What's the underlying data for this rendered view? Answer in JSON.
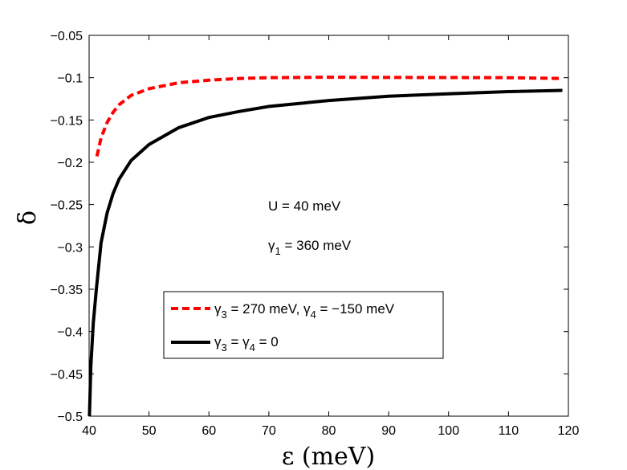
{
  "chart_data": {
    "type": "line",
    "xlabel": "ε (meV)",
    "ylabel": "δ",
    "xlim": [
      40,
      120
    ],
    "ylim": [
      -0.5,
      -0.05
    ],
    "xticks": [
      40,
      50,
      60,
      70,
      80,
      90,
      100,
      110,
      120
    ],
    "xtick_labels": [
      "40",
      "50",
      "60",
      "70",
      "80",
      "90",
      "100",
      "110",
      "120"
    ],
    "yticks": [
      -0.05,
      -0.1,
      -0.15,
      -0.2,
      -0.25,
      -0.3,
      -0.35,
      -0.4,
      -0.45,
      -0.5
    ],
    "ytick_labels": [
      "−0.05",
      "−0.1",
      "−0.15",
      "−0.2",
      "−0.25",
      "−0.3",
      "−0.35",
      "−0.4",
      "−0.45",
      "−0.5"
    ],
    "grid": false,
    "annotations": {
      "u_text": "U = 40 meV",
      "g1_sym": "γ",
      "g1_sub": "1",
      "g1_rest": " = 360 meV"
    },
    "legend": {
      "position": "lower-center",
      "entries": [
        {
          "series": 0,
          "parts": [
            {
              "t": "γ"
            },
            {
              "sub": "3"
            },
            {
              "t": " = 270 meV, γ"
            },
            {
              "sub": "4"
            },
            {
              "t": " = −150 meV"
            }
          ]
        },
        {
          "series": 1,
          "parts": [
            {
              "t": "γ"
            },
            {
              "sub": "3"
            },
            {
              "t": " = γ"
            },
            {
              "sub": "4"
            },
            {
              "t": " = 0"
            }
          ]
        }
      ]
    },
    "series": [
      {
        "name": "γ3 = 270 meV, γ4 = −150 meV",
        "color": "#ff0000",
        "style": "dashed",
        "x": [
          41.3,
          42,
          43,
          44,
          45,
          47,
          50,
          55,
          60,
          65,
          70,
          80,
          90,
          100,
          110,
          119
        ],
        "y": [
          -0.193,
          -0.171,
          -0.153,
          -0.141,
          -0.132,
          -0.121,
          -0.113,
          -0.106,
          -0.103,
          -0.101,
          -0.1,
          -0.0995,
          -0.0997,
          -0.0998,
          -0.1,
          -0.101
        ]
      },
      {
        "name": "γ3 = γ4 = 0",
        "color": "#000000",
        "style": "solid",
        "x": [
          40.05,
          40.3,
          40.7,
          41.2,
          42,
          43,
          44,
          45,
          47,
          50,
          55,
          60,
          65,
          70,
          80,
          90,
          100,
          110,
          119
        ],
        "y": [
          -0.5,
          -0.44,
          -0.39,
          -0.35,
          -0.295,
          -0.26,
          -0.237,
          -0.22,
          -0.198,
          -0.179,
          -0.159,
          -0.147,
          -0.14,
          -0.134,
          -0.127,
          -0.122,
          -0.119,
          -0.1165,
          -0.115
        ]
      }
    ]
  }
}
